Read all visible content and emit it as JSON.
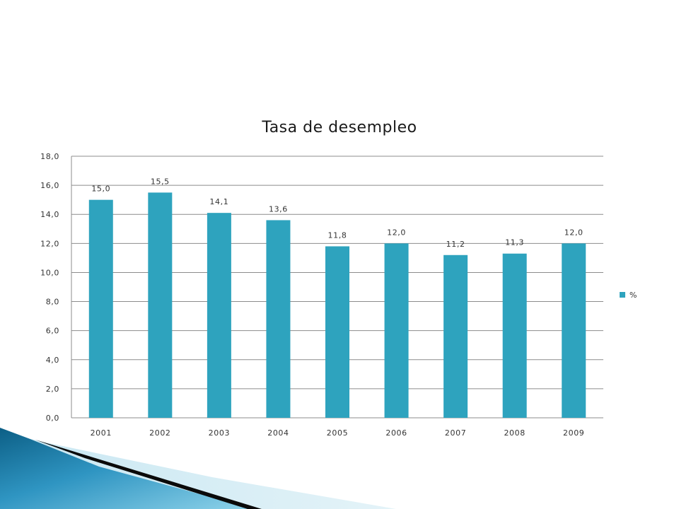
{
  "chart_data": {
    "type": "bar",
    "title": "Tasa de desempleo",
    "xlabel": "",
    "ylabel": "",
    "categories": [
      "2001",
      "2002",
      "2003",
      "2004",
      "2005",
      "2006",
      "2007",
      "2008",
      "2009"
    ],
    "series": [
      {
        "name": "%",
        "values": [
          15.0,
          15.5,
          14.1,
          13.6,
          11.8,
          12.0,
          11.2,
          11.3,
          12.0
        ],
        "value_labels": [
          "15,0",
          "15,5",
          "14,1",
          "13,6",
          "11,8",
          "12,0",
          "11,2",
          "11,3",
          "12,0"
        ],
        "color": "#2ea3be"
      }
    ],
    "ylim": [
      0,
      18
    ],
    "yticks": [
      0,
      2,
      4,
      6,
      8,
      10,
      12,
      14,
      16,
      18
    ],
    "ytick_labels": [
      "0,0",
      "2,0",
      "4,0",
      "6,0",
      "8,0",
      "10,0",
      "12,0",
      "14,0",
      "16,0",
      "18,0"
    ],
    "grid": true,
    "legend_position": "right"
  },
  "colors": {
    "bar": "#2ea3be",
    "grid": "#8c8c8c",
    "swoosh_light": "#5bb8d8",
    "swoosh_dark": "#0c5f86",
    "swoosh_black": "#0a0a0a"
  }
}
